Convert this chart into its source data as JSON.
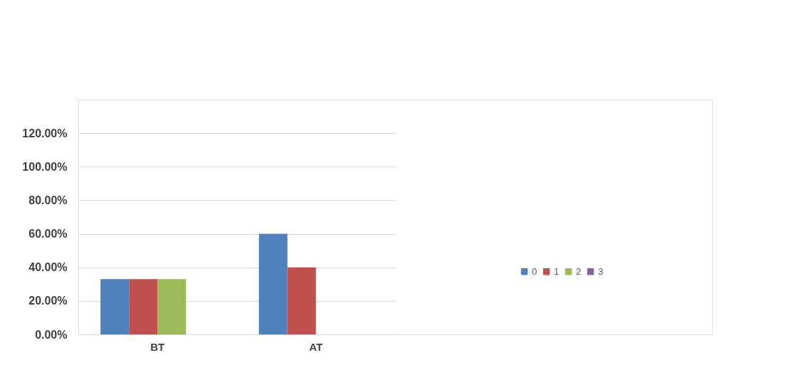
{
  "chart_data": {
    "type": "bar",
    "categories": [
      "BT",
      "AT"
    ],
    "series": [
      {
        "name": "0",
        "color": "#4f81bd",
        "values": [
          33,
          60
        ]
      },
      {
        "name": "1",
        "color": "#c0504d",
        "values": [
          33,
          40
        ]
      },
      {
        "name": "2",
        "color": "#9bbb59",
        "values": [
          33,
          0
        ]
      },
      {
        "name": "3",
        "color": "#8064a2",
        "values": [
          0,
          0
        ]
      }
    ],
    "ylim": [
      0,
      140
    ],
    "yticks": [
      {
        "value": 0,
        "label": "0.00%"
      },
      {
        "value": 20,
        "label": "20.00%"
      },
      {
        "value": 40,
        "label": "40.00%"
      },
      {
        "value": 60,
        "label": "60.00%"
      },
      {
        "value": 80,
        "label": "80.00%"
      },
      {
        "value": 100,
        "label": "100.00%"
      },
      {
        "value": 120,
        "label": "120.00%"
      }
    ],
    "grid": "y",
    "legend": "right"
  }
}
